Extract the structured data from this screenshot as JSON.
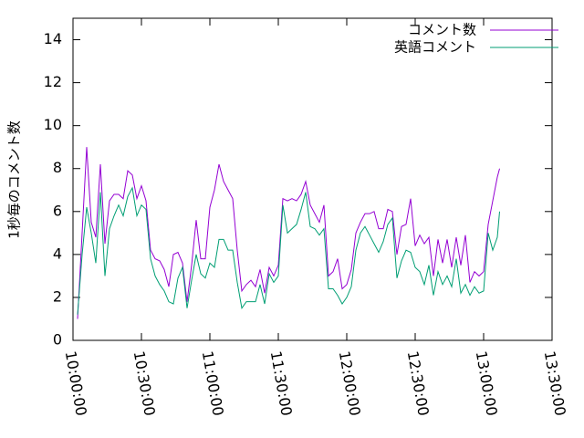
{
  "chart_data": {
    "type": "line",
    "ylabel": "1秒毎のコメント数",
    "x": [
      "10:02:00",
      "10:04:00",
      "10:06:00",
      "10:08:00",
      "10:10:00",
      "10:12:00",
      "10:14:00",
      "10:16:00",
      "10:18:00",
      "10:20:00",
      "10:22:00",
      "10:24:00",
      "10:26:00",
      "10:28:00",
      "10:30:00",
      "10:32:00",
      "10:34:00",
      "10:36:00",
      "10:38:00",
      "10:40:00",
      "10:42:00",
      "10:44:00",
      "10:46:00",
      "10:48:00",
      "10:50:00",
      "10:52:00",
      "10:54:00",
      "10:56:00",
      "10:58:00",
      "11:00:00",
      "11:02:00",
      "11:04:00",
      "11:06:00",
      "11:08:00",
      "11:10:00",
      "11:12:00",
      "11:14:00",
      "11:16:00",
      "11:18:00",
      "11:20:00",
      "11:22:00",
      "11:24:00",
      "11:26:00",
      "11:28:00",
      "11:30:00",
      "11:32:00",
      "11:34:00",
      "11:36:00",
      "11:38:00",
      "11:40:00",
      "11:42:00",
      "11:44:00",
      "11:46:00",
      "11:48:00",
      "11:50:00",
      "11:52:00",
      "11:54:00",
      "11:56:00",
      "11:58:00",
      "12:00:00",
      "12:02:00",
      "12:04:00",
      "12:06:00",
      "12:08:00",
      "12:10:00",
      "12:12:00",
      "12:14:00",
      "12:16:00",
      "12:18:00",
      "12:20:00",
      "12:22:00",
      "12:24:00",
      "12:26:00",
      "12:28:00",
      "12:30:00",
      "12:32:00",
      "12:34:00",
      "12:36:00",
      "12:38:00",
      "12:40:00",
      "12:42:00",
      "12:44:00",
      "12:46:00",
      "12:48:00",
      "12:50:00",
      "12:52:00",
      "12:54:00",
      "12:56:00",
      "12:58:00",
      "13:00:00",
      "13:02:00",
      "13:04:00",
      "13:06:00",
      "13:07:00"
    ],
    "series": [
      {
        "name": "コメント数",
        "color": "#9400d3",
        "values": [
          1.0,
          5,
          9.0,
          5.5,
          4.8,
          8.2,
          4.5,
          6.5,
          6.8,
          6.8,
          6.6,
          7.9,
          7.7,
          6.6,
          7.2,
          6.5,
          4.2,
          3.8,
          3.7,
          3.3,
          2.5,
          4.0,
          4.1,
          3.6,
          1.8,
          3.5,
          5.6,
          3.8,
          3.8,
          6.2,
          7.0,
          8.2,
          7.4,
          7.0,
          6.6,
          4.2,
          2.3,
          2.6,
          2.8,
          2.5,
          3.3,
          2.2,
          3.4,
          3.0,
          3.5,
          6.6,
          6.5,
          6.6,
          6.5,
          6.8,
          7.4,
          6.3,
          5.9,
          5.5,
          6.3,
          3.0,
          3.2,
          3.8,
          2.4,
          2.6,
          3.3,
          5.0,
          5.5,
          5.9,
          5.9,
          6.0,
          5.2,
          5.2,
          6.1,
          6.0,
          4.0,
          5.3,
          5.4,
          6.6,
          4.4,
          4.9,
          4.5,
          4.8,
          3.0,
          4.7,
          3.6,
          4.7,
          3.4,
          4.8,
          3.5,
          4.9,
          2.7,
          3.2,
          3.0,
          3.2,
          5.4,
          6.5,
          7.6,
          8.0
        ]
      },
      {
        "name": "英語コメント",
        "color": "#009e73",
        "values": [
          1.2,
          4,
          6.2,
          5.0,
          3.6,
          6.9,
          3.0,
          5.2,
          5.8,
          6.3,
          5.8,
          6.7,
          7.1,
          5.8,
          6.3,
          6.1,
          3.8,
          3.0,
          2.6,
          2.3,
          1.8,
          1.7,
          2.9,
          3.4,
          1.5,
          2.8,
          4.0,
          3.1,
          2.9,
          3.6,
          3.4,
          4.7,
          4.7,
          4.2,
          4.2,
          2.7,
          1.5,
          1.8,
          1.8,
          1.8,
          2.6,
          1.7,
          3.1,
          2.7,
          3.0,
          6.3,
          5.0,
          5.2,
          5.4,
          6.1,
          6.9,
          5.3,
          5.2,
          4.9,
          5.2,
          2.4,
          2.4,
          2.1,
          1.7,
          2.0,
          2.5,
          4.2,
          5.0,
          5.3,
          4.9,
          4.5,
          4.1,
          4.6,
          5.4,
          5.7,
          2.9,
          3.7,
          4.2,
          4.1,
          3.4,
          3.2,
          2.6,
          3.5,
          2.1,
          3.2,
          2.6,
          3.0,
          2.5,
          3.8,
          2.2,
          2.6,
          2.1,
          2.5,
          2.2,
          2.3,
          5.0,
          4.2,
          4.8,
          6.0
        ]
      }
    ],
    "xlim": [
      "10:00:00",
      "13:30:00"
    ],
    "xticks": [
      "10:00:00",
      "10:30:00",
      "11:00:00",
      "11:30:00",
      "12:00:00",
      "12:30:00",
      "13:00:00",
      "13:30:00"
    ],
    "ylim": [
      0,
      15
    ],
    "yticks": [
      0,
      2,
      4,
      6,
      8,
      10,
      12,
      14
    ],
    "legend": "top-right"
  }
}
